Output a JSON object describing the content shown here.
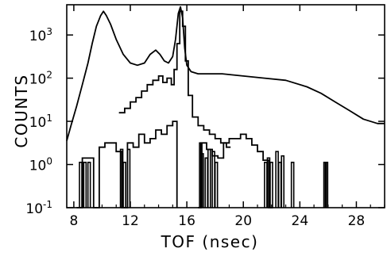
{
  "chart_data": {
    "type": "line",
    "title": "",
    "xlabel": "TOF (nsec)",
    "ylabel": "COUNTS",
    "xlim": [
      7.5,
      30
    ],
    "ylim_log10": [
      -1,
      3.7
    ],
    "y_scale": "log",
    "x_tick_labels": [
      "8",
      "12",
      "16",
      "20",
      "24",
      "28"
    ],
    "x_tick_values": [
      8,
      12,
      16,
      20,
      24,
      28
    ],
    "y_tick_labels": [
      {
        "base": "10",
        "exp": "-1",
        "value_log10": -1
      },
      {
        "base": "10",
        "exp": "0",
        "value_log10": 0
      },
      {
        "base": "10",
        "exp": "1",
        "value_log10": 1
      },
      {
        "base": "10",
        "exp": "2",
        "value_log10": 2
      },
      {
        "base": "10",
        "exp": "3",
        "value_log10": 3
      }
    ],
    "grid": false,
    "legend": "none",
    "series": [
      {
        "style": "smooth",
        "x": [
          7.5,
          7.8,
          8.2,
          8.6,
          9.0,
          9.3,
          9.6,
          9.9,
          10.1,
          10.3,
          10.6,
          11.0,
          11.5,
          12.0,
          12.5,
          13.0,
          13.4,
          13.8,
          14.1,
          14.4,
          14.7,
          15.0,
          15.2,
          15.4,
          15.55,
          15.7,
          15.85,
          16.0,
          16.3,
          16.8,
          17.5,
          18.5,
          20.0,
          21.5,
          23.0,
          24.5,
          25.5,
          26.5,
          27.5,
          28.5,
          29.5,
          30.0
        ],
        "y_log10": [
          0.55,
          0.9,
          1.35,
          1.85,
          2.35,
          2.8,
          3.2,
          3.45,
          3.55,
          3.45,
          3.25,
          2.9,
          2.55,
          2.35,
          2.3,
          2.35,
          2.55,
          2.65,
          2.55,
          2.4,
          2.35,
          2.5,
          2.9,
          3.5,
          3.65,
          3.4,
          2.7,
          2.3,
          2.15,
          2.1,
          2.1,
          2.1,
          2.05,
          2.0,
          1.95,
          1.8,
          1.65,
          1.45,
          1.25,
          1.05,
          0.95,
          0.95
        ]
      },
      {
        "style": "step",
        "x": [
          11.2,
          11.6,
          12.0,
          12.4,
          12.8,
          13.2,
          13.6,
          14.0,
          14.3,
          14.6,
          14.9,
          15.1,
          15.3,
          15.5,
          15.7,
          15.9,
          16.1,
          16.4,
          16.8,
          17.2,
          17.6,
          18.0,
          18.4,
          18.8
        ],
        "y_log10": [
          1.2,
          1.3,
          1.45,
          1.55,
          1.7,
          1.85,
          1.95,
          2.05,
          1.9,
          2.0,
          1.85,
          2.2,
          2.8,
          3.55,
          3.2,
          2.4,
          1.6,
          1.1,
          0.9,
          0.8,
          0.7,
          0.6,
          0.5,
          0.4
        ]
      },
      {
        "style": "step-floor",
        "x": [
          8.2,
          8.6,
          9.0,
          9.4,
          9.8,
          10.2,
          10.6,
          11.0,
          11.4,
          11.8,
          12.2,
          12.6,
          13.0,
          13.4,
          13.8,
          14.2,
          14.6,
          15.0
        ],
        "y_log10": [
          -1,
          0.15,
          0.15,
          -1,
          0.4,
          0.5,
          0.5,
          0.3,
          -1,
          0.5,
          0.4,
          0.7,
          0.5,
          0.6,
          0.8,
          0.7,
          0.9,
          1.0
        ]
      },
      {
        "style": "step-floor",
        "x": [
          16.8,
          17.0,
          17.4,
          17.8,
          18.2,
          18.6,
          19.0,
          19.4,
          19.8,
          20.2,
          20.6,
          21.0,
          21.4,
          21.8
        ],
        "y_log10": [
          -1,
          0.5,
          0.35,
          0.2,
          0.15,
          0.5,
          0.6,
          0.6,
          0.7,
          0.6,
          0.45,
          0.3,
          0.1,
          -1
        ]
      },
      {
        "style": "spikes",
        "x": [
          8.4,
          8.7,
          9.0,
          11.3,
          11.5,
          11.8,
          16.9,
          17.0,
          17.3,
          17.5,
          17.8,
          18.0,
          21.5,
          21.7,
          21.9,
          22.3,
          22.5,
          22.7,
          23.4,
          25.7,
          25.8
        ],
        "y_log10": [
          0.05,
          0.05,
          0.05,
          0.35,
          0.05,
          0.35,
          0.5,
          0.25,
          0.15,
          0.35,
          0.3,
          0.05,
          0.05,
          0.15,
          0.05,
          0.3,
          0.05,
          0.2,
          0.05,
          0.05,
          0.05
        ]
      }
    ]
  }
}
